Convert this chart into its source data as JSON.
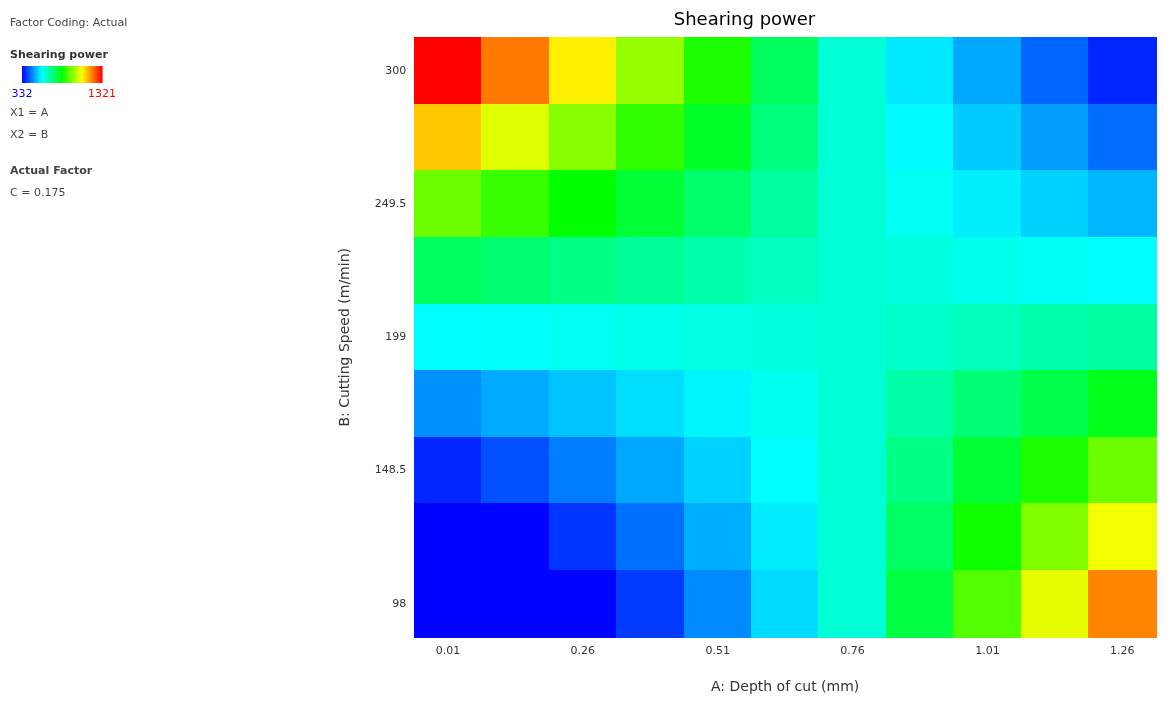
{
  "chart_data": {
    "type": "heatmap",
    "title": "Shearing power",
    "xlabel": "A: Depth of cut (mm)",
    "ylabel": "B: Cutting Speed (m/min)",
    "clabel": "Shearing power",
    "annotations": [
      "Factor Coding: Actual",
      "X1 = A",
      "X2 = B",
      "Actual Factor",
      "C = 0.175"
    ],
    "categories": [
      "0.01",
      null,
      "0.26",
      null,
      "0.51",
      null,
      "0.76",
      null,
      "1.01",
      null,
      "1.26"
    ],
    "y_categories": [
      "300",
      null,
      "249.5",
      null,
      "199",
      null,
      "148.5",
      null,
      "98"
    ],
    "clim": [
      332,
      1321
    ],
    "cticks": [
      332,
      1321
    ],
    "cells": [
      [
        1321,
        1205,
        1088,
        971,
        854,
        737,
        620,
        557,
        494,
        431,
        368
      ],
      [
        1127,
        1043,
        958,
        874,
        789,
        705,
        620,
        575,
        529,
        484,
        438
      ],
      [
        932,
        880,
        828,
        776,
        724,
        672,
        620,
        592,
        564,
        536,
        508
      ],
      [
        737,
        718,
        698,
        679,
        659,
        640,
        620,
        610,
        599,
        589,
        578
      ],
      [
        578,
        585,
        592,
        599,
        606,
        613,
        620,
        633,
        646,
        659,
        672
      ],
      [
        473,
        498,
        522,
        547,
        571,
        596,
        620,
        666,
        711,
        757,
        802
      ],
      [
        368,
        410,
        452,
        494,
        536,
        578,
        620,
        698,
        776,
        854,
        932
      ],
      [
        335,
        335,
        382,
        442,
        501,
        561,
        620,
        731,
        841,
        952,
        1062
      ],
      [
        335,
        335,
        335,
        389,
        466,
        543,
        620,
        763,
        906,
        1049,
        1192
      ]
    ]
  }
}
